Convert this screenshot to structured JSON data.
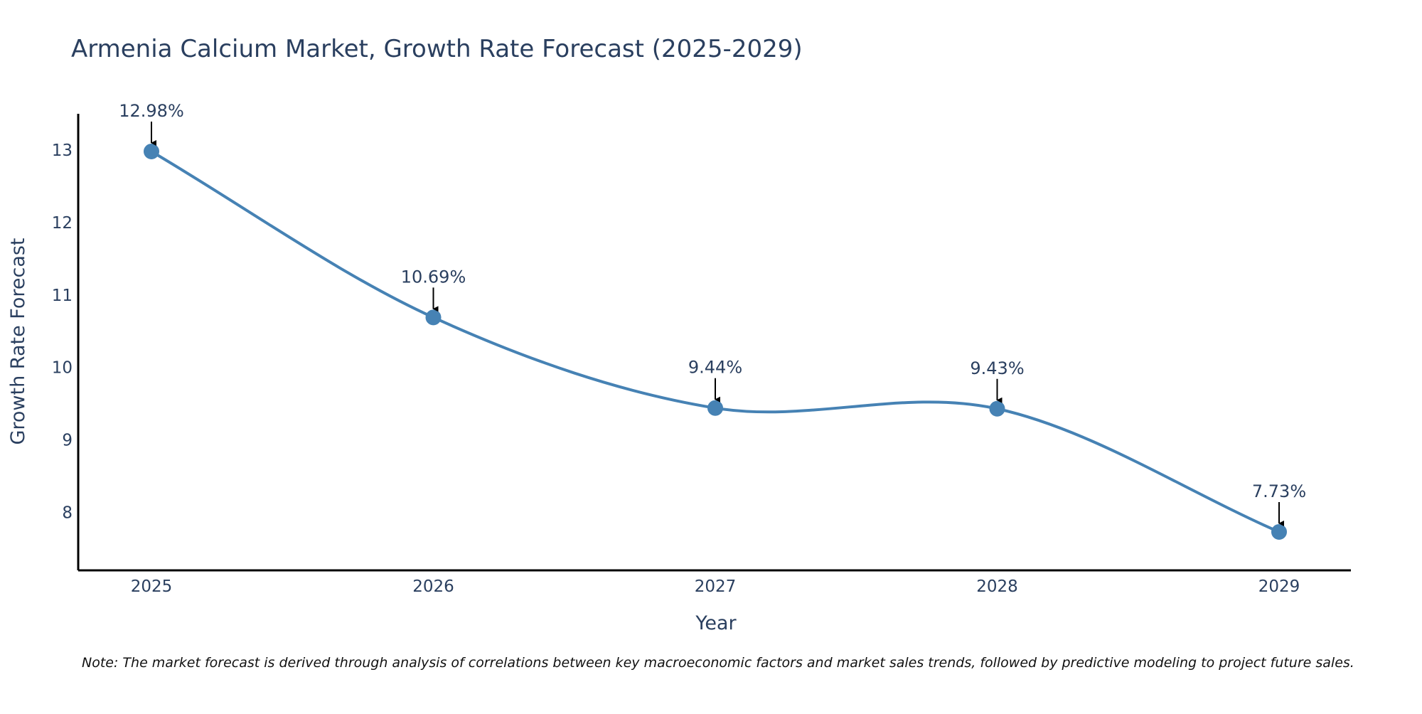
{
  "chart_data": {
    "type": "line",
    "title": "Armenia Calcium Market, Growth Rate Forecast (2025-2029)",
    "xlabel": "Year",
    "ylabel": "Growth Rate Forecast",
    "categories": [
      "2025",
      "2026",
      "2027",
      "2028",
      "2029"
    ],
    "series": [
      {
        "name": "Growth Rate Forecast",
        "values": [
          12.98,
          10.69,
          9.44,
          9.43,
          7.73
        ],
        "labels": [
          "12.98%",
          "10.69%",
          "9.44%",
          "9.43%",
          "7.73%"
        ]
      }
    ],
    "ylim": [
      7.2,
      13.5
    ],
    "yticks": [
      8,
      9,
      10,
      11,
      12,
      13
    ],
    "ytick_labels": [
      "8",
      "9",
      "10",
      "11",
      "12",
      "13"
    ],
    "line_shape": "spline",
    "grid": false,
    "colors": {
      "line": "#4682b4",
      "marker": "#4682b4",
      "arrow": "#000000",
      "text": "#2a3f5f",
      "axis": "#000000"
    },
    "note": "Note: The market forecast is derived through analysis of correlations between key macroeconomic factors and market sales trends, followed by predictive modeling to project future sales."
  }
}
